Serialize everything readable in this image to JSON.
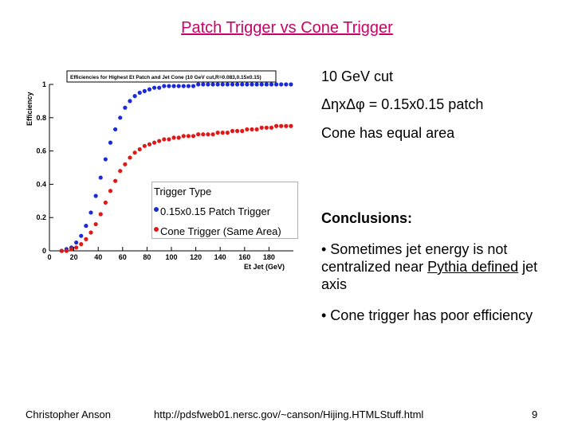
{
  "slide": {
    "title": "Patch Trigger vs Cone Trigger",
    "notes": [
      "10 GeV cut",
      "ΔηxΔφ = 0.15x0.15 patch",
      "Cone has equal area"
    ],
    "conclusions_heading": "Conclusions:",
    "bullet1_pre": "• Sometimes jet energy is not centralized near ",
    "bullet1_link": "Pythia defined",
    "bullet1_post": " jet axis",
    "bullet2": "• Cone trigger has poor efficiency",
    "footer_left": "Christopher Anson",
    "footer_center": "http://pdsfweb01.nersc.gov/~canson/Hijing.HTMLStuff.html",
    "footer_right": "9"
  },
  "legend": {
    "title": "Trigger Type",
    "items": [
      "0.15x0.15 Patch Trigger",
      "Cone Trigger (Same Area)"
    ]
  },
  "colors": {
    "patch": "#1a2ad6",
    "cone": "#e01818",
    "title": "#cc0066"
  },
  "chart_data": {
    "type": "scatter",
    "title": "Efficiencies for Highest Et Patch and Jet Cone (10 GeV cut,R=0.083,0.15x0.15)",
    "xlabel": "Et Jet (GeV)",
    "ylabel": "Efficiency",
    "xlim": [
      0,
      200
    ],
    "ylim": [
      0,
      1.0
    ],
    "xticks": [
      0,
      20,
      40,
      60,
      80,
      100,
      120,
      140,
      160,
      180
    ],
    "xtick_labels": [
      "0",
      "20",
      "40",
      "60",
      "80",
      "100",
      "120",
      "140",
      "160",
      "180"
    ],
    "yticks": [
      0,
      0.2,
      0.4,
      0.6,
      0.8,
      1
    ],
    "ytick_labels": [
      "0",
      "0.2",
      "0.4",
      "0.6",
      "0.8",
      "1"
    ],
    "grid": false,
    "series": [
      {
        "name": "0.15x0.15 Patch Trigger",
        "color": "#1a2ad6",
        "x": [
          10,
          14,
          18,
          22,
          26,
          30,
          34,
          38,
          42,
          46,
          50,
          54,
          58,
          62,
          66,
          70,
          74,
          78,
          82,
          86,
          90,
          94,
          98,
          102,
          106,
          110,
          114,
          118,
          122,
          126,
          130,
          134,
          138,
          142,
          146,
          150,
          154,
          158,
          162,
          166,
          170,
          174,
          178,
          182,
          186,
          190,
          194,
          198
        ],
        "y": [
          0.0,
          0.01,
          0.02,
          0.05,
          0.09,
          0.15,
          0.23,
          0.33,
          0.44,
          0.55,
          0.65,
          0.73,
          0.8,
          0.86,
          0.9,
          0.93,
          0.95,
          0.96,
          0.97,
          0.98,
          0.98,
          0.99,
          0.99,
          0.99,
          0.99,
          0.99,
          0.99,
          0.99,
          1.0,
          1.0,
          1.0,
          1.0,
          1.0,
          1.0,
          1.0,
          1.0,
          1.0,
          1.0,
          1.0,
          1.0,
          1.0,
          1.0,
          1.0,
          1.0,
          1.0,
          1.0,
          1.0,
          1.0
        ]
      },
      {
        "name": "Cone Trigger (Same Area)",
        "color": "#e01818",
        "x": [
          10,
          14,
          18,
          22,
          26,
          30,
          34,
          38,
          42,
          46,
          50,
          54,
          58,
          62,
          66,
          70,
          74,
          78,
          82,
          86,
          90,
          94,
          98,
          102,
          106,
          110,
          114,
          118,
          122,
          126,
          130,
          134,
          138,
          142,
          146,
          150,
          154,
          158,
          162,
          166,
          170,
          174,
          178,
          182,
          186,
          190,
          194,
          198
        ],
        "y": [
          0.0,
          0.0,
          0.01,
          0.02,
          0.04,
          0.07,
          0.11,
          0.16,
          0.22,
          0.29,
          0.36,
          0.42,
          0.48,
          0.52,
          0.56,
          0.59,
          0.61,
          0.63,
          0.64,
          0.65,
          0.66,
          0.67,
          0.67,
          0.68,
          0.68,
          0.69,
          0.69,
          0.69,
          0.7,
          0.7,
          0.7,
          0.7,
          0.71,
          0.71,
          0.71,
          0.72,
          0.72,
          0.72,
          0.73,
          0.73,
          0.73,
          0.74,
          0.74,
          0.74,
          0.75,
          0.75,
          0.75,
          0.75
        ]
      }
    ]
  }
}
